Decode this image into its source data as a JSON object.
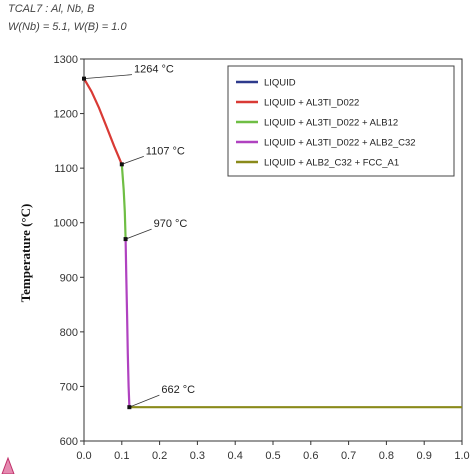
{
  "header": {
    "line1": "TCAL7 : Al, Nb, B",
    "line2": "W(Nb) = 5.1, W(B) = 1.0"
  },
  "chart_data": {
    "type": "line",
    "ylabel": "Temperature (°C)",
    "xlim": [
      0,
      1.0
    ],
    "ylim": [
      600,
      1300
    ],
    "xticks": [
      "0.0",
      "0.1",
      "0.2",
      "0.3",
      "0.4",
      "0.5",
      "0.6",
      "0.7",
      "0.8",
      "0.9",
      "1.0"
    ],
    "yticks": [
      "600",
      "700",
      "800",
      "900",
      "1000",
      "1100",
      "1200",
      "1300"
    ],
    "legend_position": "top-right",
    "series": [
      {
        "name": "LIQUID",
        "color": "#2e3a8c",
        "points": []
      },
      {
        "name": "LIQUID + AL3TI_D022",
        "color": "#d93a35",
        "points": [
          [
            0.0,
            1264
          ],
          [
            0.02,
            1240
          ],
          [
            0.04,
            1210
          ],
          [
            0.06,
            1175
          ],
          [
            0.08,
            1140
          ],
          [
            0.1,
            1107
          ]
        ]
      },
      {
        "name": "LIQUID + AL3TI_D022 + ALB12",
        "color": "#6fbe44",
        "points": [
          [
            0.1,
            1107
          ],
          [
            0.105,
            1060
          ],
          [
            0.108,
            1020
          ],
          [
            0.11,
            970
          ]
        ]
      },
      {
        "name": "LIQUID + AL3TI_D022 + ALB2_C32",
        "color": "#b042c0",
        "points": [
          [
            0.11,
            970
          ],
          [
            0.112,
            900
          ],
          [
            0.114,
            830
          ],
          [
            0.116,
            760
          ],
          [
            0.118,
            700
          ],
          [
            0.12,
            662
          ]
        ]
      },
      {
        "name": "LIQUID + ALB2_C32 + FCC_A1",
        "color": "#8a8a1a",
        "points": [
          [
            0.12,
            662
          ],
          [
            1.0,
            662
          ]
        ]
      }
    ],
    "annotations": [
      {
        "label": "1264 °C",
        "x": 0.0,
        "y": 1264
      },
      {
        "label": "1107 °C",
        "x": 0.1,
        "y": 1107
      },
      {
        "label": "970 °C",
        "x": 0.11,
        "y": 970
      },
      {
        "label": "662 °C",
        "x": 0.12,
        "y": 662
      }
    ]
  }
}
